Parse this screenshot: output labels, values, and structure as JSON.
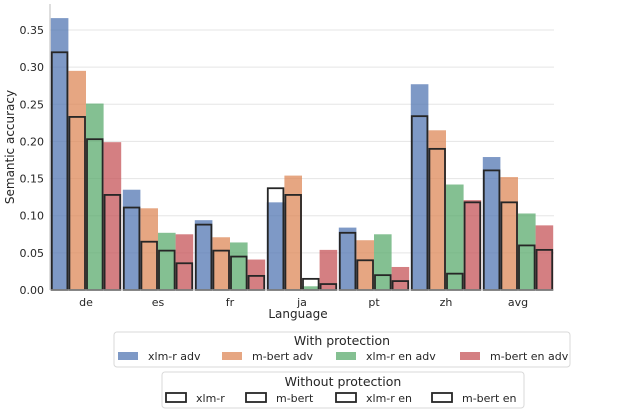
{
  "chart_data": {
    "type": "bar",
    "xlabel": "Language",
    "ylabel": "Semantic accuracy",
    "categories": [
      "de",
      "es",
      "fr",
      "ja",
      "pt",
      "zh",
      "avg"
    ],
    "ylim": [
      0,
      0.385
    ],
    "yticks": [
      "0.00",
      "0.05",
      "0.10",
      "0.15",
      "0.20",
      "0.25",
      "0.30",
      "0.35"
    ],
    "grid": "horizontal",
    "series_with_protection": [
      {
        "name": "xlm-r adv",
        "color": "#4c72b0",
        "values": [
          0.366,
          0.135,
          0.094,
          0.118,
          0.084,
          0.277,
          0.179
        ]
      },
      {
        "name": "m-bert adv",
        "color": "#dd8452",
        "values": [
          0.295,
          0.11,
          0.071,
          0.154,
          0.067,
          0.215,
          0.152
        ]
      },
      {
        "name": "xlm-r en adv",
        "color": "#55a868",
        "values": [
          0.251,
          0.077,
          0.064,
          0.005,
          0.075,
          0.142,
          0.103
        ]
      },
      {
        "name": "m-bert en adv",
        "color": "#c44e52",
        "values": [
          0.199,
          0.075,
          0.041,
          0.054,
          0.031,
          0.121,
          0.087
        ]
      }
    ],
    "series_without_protection": [
      {
        "name": "xlm-r",
        "values": [
          0.32,
          0.111,
          0.088,
          0.137,
          0.077,
          0.234,
          0.161
        ]
      },
      {
        "name": "m-bert",
        "values": [
          0.233,
          0.065,
          0.053,
          0.128,
          0.04,
          0.19,
          0.118
        ]
      },
      {
        "name": "xlm-r en",
        "values": [
          0.203,
          0.053,
          0.045,
          0.015,
          0.02,
          0.022,
          0.06
        ]
      },
      {
        "name": "m-bert en",
        "values": [
          0.128,
          0.036,
          0.019,
          0.008,
          0.012,
          0.118,
          0.054
        ]
      }
    ],
    "legend_with_protection": {
      "title": "With protection",
      "placement": "bottom-center"
    },
    "legend_without_protection": {
      "title": "Without protection",
      "placement": "bottom-center"
    }
  }
}
